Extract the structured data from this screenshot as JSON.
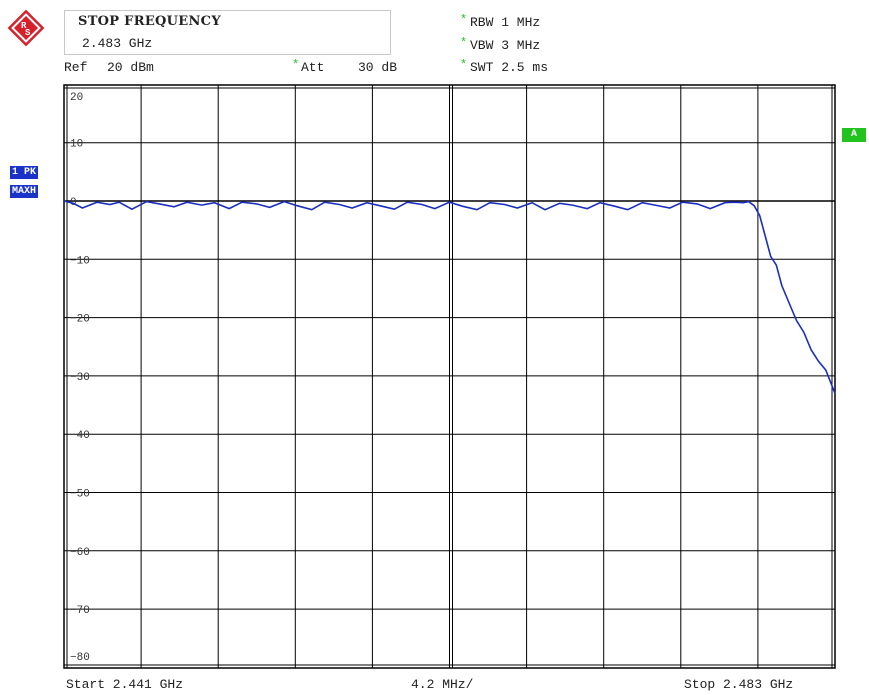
{
  "header": {
    "entry_title": "STOP FREQUENCY",
    "entry_value": "2.483 GHz",
    "ref_label": "Ref",
    "ref_value": "20 dBm",
    "att_label": "Att",
    "att_value": "30 dB",
    "rbw": "RBW 1 MHz",
    "vbw": "VBW 3 MHz",
    "swt": "SWT 2.5 ms"
  },
  "badges": {
    "trace_mode_1": "1 PK",
    "trace_mode_2": "MAXH",
    "trace_label": "A"
  },
  "footer": {
    "start": "Start 2.441 GHz",
    "span_div": "4.2 MHz/",
    "stop": "Stop 2.483 GHz"
  },
  "colors": {
    "trace": "#1a2fc0",
    "grid": "#000000",
    "badge_blue": "#1a33c8",
    "badge_green": "#22c21f",
    "star": "#1fc21f",
    "logo_red": "#d6202a"
  },
  "chart_data": {
    "type": "line",
    "xlabel": "",
    "ylabel": "",
    "xlim": [
      2.441,
      2.483
    ],
    "ylim": [
      -85,
      20
    ],
    "y_ticks": [
      20,
      10,
      0,
      -10,
      -20,
      -30,
      -40,
      -50,
      -60,
      -70,
      -80
    ],
    "x_unit": "GHz",
    "y_unit": "dBm",
    "grid": true,
    "series": [
      {
        "x": [
          2.441,
          2.4415,
          2.442,
          2.4428,
          2.4435,
          2.444,
          2.4447,
          2.4455,
          2.4462,
          2.447,
          2.4477,
          2.4485,
          2.4492,
          2.45,
          2.4507,
          2.4515,
          2.4522,
          2.453,
          2.4537,
          2.4545,
          2.4552,
          2.456,
          2.4567,
          2.4575,
          2.4582,
          2.459,
          2.4597,
          2.4605,
          2.4612,
          2.462,
          2.4627,
          2.4635,
          2.4642,
          2.465,
          2.4657,
          2.4665,
          2.4672,
          2.468,
          2.4687,
          2.4695,
          2.4702,
          2.471,
          2.4717,
          2.4725,
          2.4732,
          2.474,
          2.4747,
          2.4755,
          2.4762,
          2.477,
          2.4775,
          2.478,
          2.4783,
          2.4786,
          2.4789,
          2.4792,
          2.4795,
          2.4798,
          2.4801,
          2.4805,
          2.4809,
          2.4813,
          2.4817,
          2.4821,
          2.4825,
          2.483
        ],
        "y": [
          0.0,
          -0.4,
          -1.2,
          -0.2,
          -0.6,
          -0.2,
          -1.4,
          -0.1,
          -0.5,
          -1.0,
          -0.2,
          -0.7,
          -0.3,
          -1.3,
          -0.2,
          -0.5,
          -1.1,
          -0.1,
          -0.8,
          -1.5,
          -0.2,
          -0.6,
          -1.2,
          -0.3,
          -0.8,
          -1.4,
          -0.2,
          -0.6,
          -1.3,
          -0.2,
          -0.9,
          -1.5,
          -0.3,
          -0.6,
          -1.2,
          -0.3,
          -1.5,
          -0.4,
          -0.7,
          -1.3,
          -0.3,
          -0.9,
          -1.5,
          -0.3,
          -0.7,
          -1.2,
          -0.2,
          -0.5,
          -1.3,
          -0.3,
          -0.2,
          -0.3,
          -0.1,
          -0.8,
          -2.5,
          -6.0,
          -9.5,
          -11.0,
          -14.5,
          -17.5,
          -20.5,
          -22.5,
          -25.5,
          -27.5,
          -29.0,
          -33.0
        ]
      }
    ]
  }
}
